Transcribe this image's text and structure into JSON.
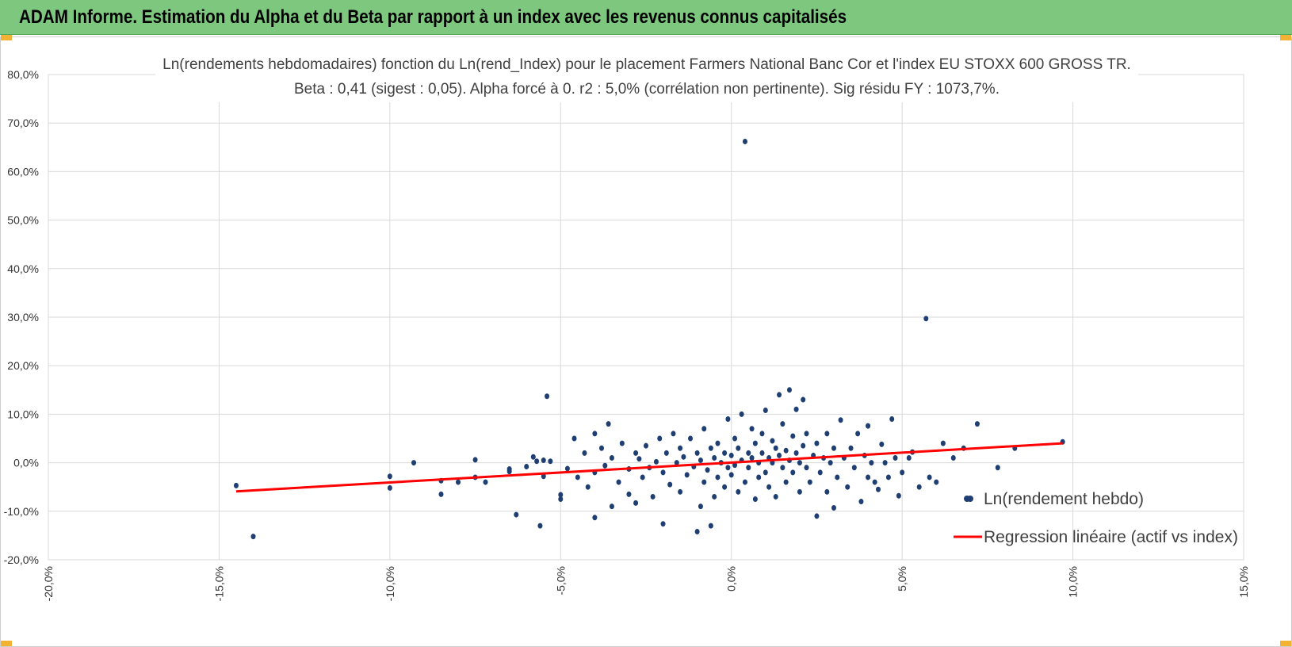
{
  "header": {
    "title": "ADAM Informe. Estimation du Alpha et du Beta par rapport à un index avec les revenus connus capitalisés",
    "background": "#7dc77e"
  },
  "chart_data": {
    "type": "scatter",
    "title_line1": "Ln(rendements hebdomadaires) fonction du Ln(rend_Index) pour le placement Farmers  National Banc Cor et l'index EU STOXX 600 GROSS TR.",
    "title_line2": "Beta : 0,41 (sigest : 0,05). Alpha forcé à 0. r2 : 5,0% (corrélation non pertinente). Sig résidu FY : 1073,7%.",
    "xlim": [
      -0.2,
      0.15
    ],
    "ylim": [
      -0.2,
      0.8
    ],
    "x_ticks": [
      -0.2,
      -0.15,
      -0.1,
      -0.05,
      0.0,
      0.05,
      0.1,
      0.15
    ],
    "x_tick_labels": [
      "-20,0%",
      "-15,0%",
      "-10,0%",
      "-5,0%",
      "0,0%",
      "5,0%",
      "10,0%",
      "15,0%"
    ],
    "y_ticks": [
      -0.2,
      -0.1,
      0.0,
      0.1,
      0.2,
      0.3,
      0.4,
      0.5,
      0.6,
      0.7,
      0.8
    ],
    "y_tick_labels": [
      "-20,0%",
      "-10,0%",
      "0,0%",
      "10,0%",
      "20,0%",
      "30,0%",
      "40,0%",
      "50,0%",
      "60,0%",
      "70,0%",
      "80,0%"
    ],
    "grid": true,
    "legend_position": "right",
    "series": [
      {
        "name": "Ln(rendement hebdo)",
        "kind": "scatter",
        "color": "#1f3f73",
        "points": [
          [
            -0.145,
            -0.047
          ],
          [
            -0.14,
            -0.152
          ],
          [
            -0.1,
            -0.028
          ],
          [
            -0.1,
            -0.052
          ],
          [
            -0.093,
            0.0
          ],
          [
            -0.085,
            -0.037
          ],
          [
            -0.085,
            -0.065
          ],
          [
            -0.08,
            -0.04
          ],
          [
            -0.075,
            0.006
          ],
          [
            -0.075,
            -0.03
          ],
          [
            -0.072,
            -0.04
          ],
          [
            -0.065,
            -0.018
          ],
          [
            -0.065,
            -0.013
          ],
          [
            -0.063,
            -0.107
          ],
          [
            -0.06,
            -0.008
          ],
          [
            -0.058,
            0.012
          ],
          [
            -0.057,
            0.003
          ],
          [
            -0.056,
            -0.13
          ],
          [
            -0.055,
            0.005
          ],
          [
            -0.055,
            -0.028
          ],
          [
            -0.054,
            0.137
          ],
          [
            -0.053,
            0.003
          ],
          [
            -0.05,
            -0.066
          ],
          [
            -0.05,
            -0.075
          ],
          [
            -0.048,
            -0.012
          ],
          [
            -0.046,
            0.05
          ],
          [
            -0.045,
            -0.03
          ],
          [
            -0.043,
            0.02
          ],
          [
            -0.042,
            -0.05
          ],
          [
            -0.04,
            0.06
          ],
          [
            -0.04,
            -0.113
          ],
          [
            -0.04,
            -0.02
          ],
          [
            -0.038,
            0.03
          ],
          [
            -0.037,
            -0.006
          ],
          [
            -0.036,
            0.08
          ],
          [
            -0.035,
            -0.09
          ],
          [
            -0.035,
            0.01
          ],
          [
            -0.033,
            -0.04
          ],
          [
            -0.032,
            0.04
          ],
          [
            -0.03,
            -0.013
          ],
          [
            -0.03,
            -0.065
          ],
          [
            -0.028,
            0.02
          ],
          [
            -0.028,
            -0.083
          ],
          [
            -0.027,
            0.008
          ],
          [
            -0.026,
            -0.03
          ],
          [
            -0.025,
            0.035
          ],
          [
            -0.024,
            -0.01
          ],
          [
            -0.023,
            -0.07
          ],
          [
            -0.022,
            0.002
          ],
          [
            -0.021,
            0.05
          ],
          [
            -0.02,
            -0.126
          ],
          [
            -0.02,
            -0.02
          ],
          [
            -0.019,
            0.02
          ],
          [
            -0.018,
            -0.045
          ],
          [
            -0.017,
            0.06
          ],
          [
            -0.016,
            0.0
          ],
          [
            -0.015,
            -0.06
          ],
          [
            -0.015,
            0.03
          ],
          [
            -0.014,
            0.012
          ],
          [
            -0.013,
            -0.025
          ],
          [
            -0.012,
            0.05
          ],
          [
            -0.011,
            -0.008
          ],
          [
            -0.01,
            0.02
          ],
          [
            -0.01,
            -0.142
          ],
          [
            -0.009,
            -0.09
          ],
          [
            -0.009,
            0.005
          ],
          [
            -0.008,
            -0.04
          ],
          [
            -0.008,
            0.07
          ],
          [
            -0.007,
            -0.015
          ],
          [
            -0.006,
            0.03
          ],
          [
            -0.006,
            -0.13
          ],
          [
            -0.005,
            0.01
          ],
          [
            -0.005,
            -0.07
          ],
          [
            -0.004,
            -0.03
          ],
          [
            -0.004,
            0.04
          ],
          [
            -0.003,
            0.0
          ],
          [
            -0.002,
            -0.05
          ],
          [
            -0.002,
            0.02
          ],
          [
            -0.001,
            0.09
          ],
          [
            -0.001,
            -0.01
          ],
          [
            0.0,
            0.015
          ],
          [
            0.0,
            -0.025
          ],
          [
            0.001,
            0.05
          ],
          [
            0.001,
            -0.005
          ],
          [
            0.002,
            0.03
          ],
          [
            0.002,
            -0.06
          ],
          [
            0.003,
            0.1
          ],
          [
            0.003,
            0.005
          ],
          [
            0.004,
            0.662
          ],
          [
            0.004,
            -0.04
          ],
          [
            0.005,
            0.02
          ],
          [
            0.005,
            -0.01
          ],
          [
            0.006,
            0.07
          ],
          [
            0.006,
            0.01
          ],
          [
            0.007,
            -0.075
          ],
          [
            0.007,
            0.04
          ],
          [
            0.008,
            0.0
          ],
          [
            0.008,
            -0.03
          ],
          [
            0.009,
            0.06
          ],
          [
            0.009,
            0.02
          ],
          [
            0.01,
            -0.02
          ],
          [
            0.01,
            0.108
          ],
          [
            0.011,
            0.01
          ],
          [
            0.011,
            -0.05
          ],
          [
            0.012,
            0.045
          ],
          [
            0.012,
            0.0
          ],
          [
            0.013,
            0.03
          ],
          [
            0.013,
            -0.07
          ],
          [
            0.014,
            0.14
          ],
          [
            0.014,
            0.015
          ],
          [
            0.015,
            -0.01
          ],
          [
            0.015,
            0.08
          ],
          [
            0.016,
            0.025
          ],
          [
            0.016,
            -0.04
          ],
          [
            0.017,
            0.15
          ],
          [
            0.017,
            0.005
          ],
          [
            0.018,
            0.055
          ],
          [
            0.018,
            -0.02
          ],
          [
            0.019,
            0.11
          ],
          [
            0.019,
            0.02
          ],
          [
            0.02,
            -0.06
          ],
          [
            0.02,
            0.0
          ],
          [
            0.021,
            0.13
          ],
          [
            0.021,
            0.035
          ],
          [
            0.022,
            -0.01
          ],
          [
            0.022,
            0.06
          ],
          [
            0.023,
            -0.04
          ],
          [
            0.024,
            0.015
          ],
          [
            0.025,
            -0.11
          ],
          [
            0.025,
            0.04
          ],
          [
            0.026,
            -0.02
          ],
          [
            0.027,
            0.01
          ],
          [
            0.028,
            0.06
          ],
          [
            0.028,
            -0.06
          ],
          [
            0.029,
            0.0
          ],
          [
            0.03,
            -0.093
          ],
          [
            0.03,
            0.03
          ],
          [
            0.031,
            -0.03
          ],
          [
            0.032,
            0.088
          ],
          [
            0.033,
            0.01
          ],
          [
            0.034,
            -0.05
          ],
          [
            0.035,
            0.03
          ],
          [
            0.036,
            -0.01
          ],
          [
            0.037,
            0.06
          ],
          [
            0.038,
            -0.08
          ],
          [
            0.039,
            0.015
          ],
          [
            0.04,
            -0.03
          ],
          [
            0.04,
            0.076
          ],
          [
            0.041,
            0.0
          ],
          [
            0.042,
            -0.04
          ],
          [
            0.043,
            -0.055
          ],
          [
            0.044,
            0.038
          ],
          [
            0.045,
            0.0
          ],
          [
            0.046,
            -0.03
          ],
          [
            0.047,
            0.09
          ],
          [
            0.048,
            0.01
          ],
          [
            0.049,
            -0.068
          ],
          [
            0.05,
            -0.02
          ],
          [
            0.052,
            0.01
          ],
          [
            0.053,
            0.022
          ],
          [
            0.055,
            -0.05
          ],
          [
            0.057,
            0.297
          ],
          [
            0.058,
            -0.03
          ],
          [
            0.06,
            -0.04
          ],
          [
            0.062,
            0.04
          ],
          [
            0.065,
            0.01
          ],
          [
            0.068,
            0.03
          ],
          [
            0.072,
            0.08
          ],
          [
            0.078,
            -0.01
          ],
          [
            0.083,
            0.03
          ],
          [
            0.097,
            0.043
          ]
        ]
      },
      {
        "name": "Regression linéaire (actif vs index)",
        "kind": "line",
        "color": "#ff0000",
        "points": [
          [
            -0.145,
            -0.059
          ],
          [
            0.097,
            0.04
          ]
        ]
      }
    ]
  }
}
